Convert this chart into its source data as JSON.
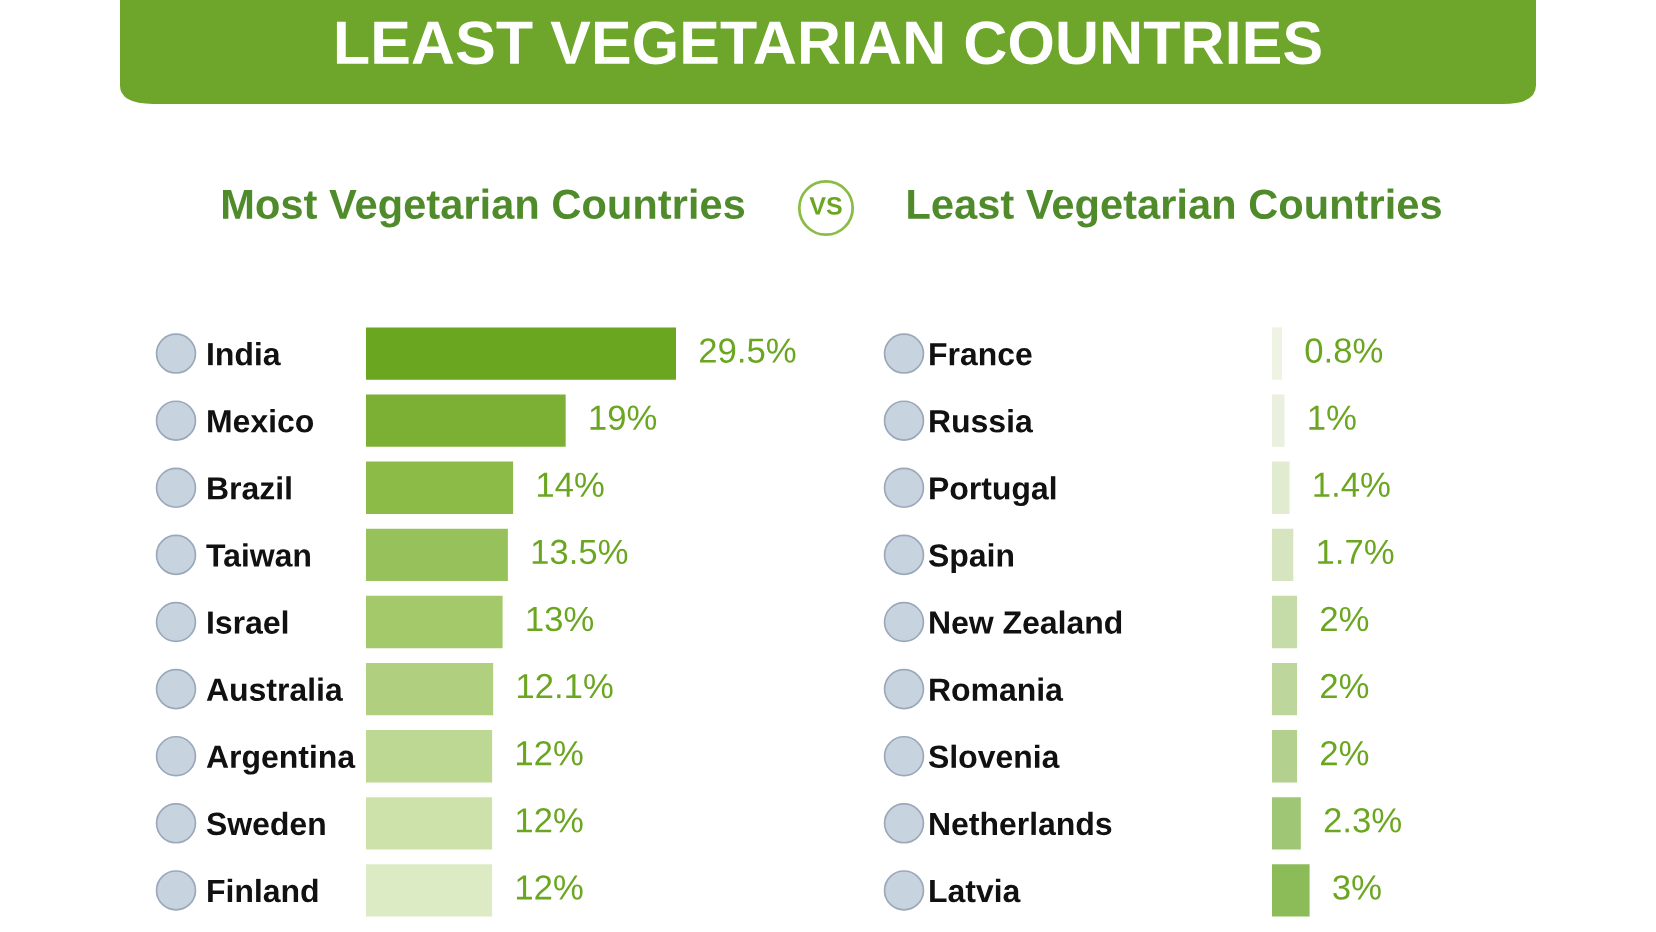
{
  "chart_data": [
    {
      "type": "bar",
      "orientation": "horizontal",
      "title": "Most Vegetarian Countries",
      "categories": [
        "India",
        "Mexico",
        "Brazil",
        "Taiwan",
        "Israel",
        "Australia",
        "Argentina",
        "Sweden",
        "Finland"
      ],
      "values": [
        29.5,
        19,
        14,
        13.5,
        13,
        12.1,
        12,
        12,
        12
      ],
      "value_labels": [
        "29.5%",
        "19%",
        "14%",
        "13.5%",
        "13%",
        "12.1%",
        "12%",
        "12%",
        "12%"
      ],
      "colors": [
        "#6aa61f",
        "#7cb034",
        "#8cbb48",
        "#97c15a",
        "#a3c96b",
        "#b0d07f",
        "#bdd893",
        "#cde2ab",
        "#dcebc4"
      ],
      "tick_labels": "y",
      "annotations": [
        "LEAST VEGETARIAN COUNTRIES",
        "VS"
      ]
    },
    {
      "type": "bar",
      "orientation": "horizontal",
      "title": "Least Vegetarian Countries",
      "categories": [
        "France",
        "Russia",
        "Portugal",
        "Spain",
        "New Zealand",
        "Romania",
        "Slovenia",
        "Netherlands",
        "Latvia"
      ],
      "values": [
        0.8,
        1,
        1.4,
        1.7,
        2,
        2,
        2,
        2.3,
        3
      ],
      "value_labels": [
        "0.8%",
        "1%",
        "1.4%",
        "1.7%",
        "2%",
        "2%",
        "2%",
        "2.3%",
        "3%"
      ],
      "colors": [
        "#eef3e4",
        "#e9f0dd",
        "#e1ebd0",
        "#d6e4c0",
        "#c5dba8",
        "#bcd69b",
        "#b3d08e",
        "#9fc674",
        "#8cbc58"
      ],
      "tick_labels": "y"
    }
  ]
}
